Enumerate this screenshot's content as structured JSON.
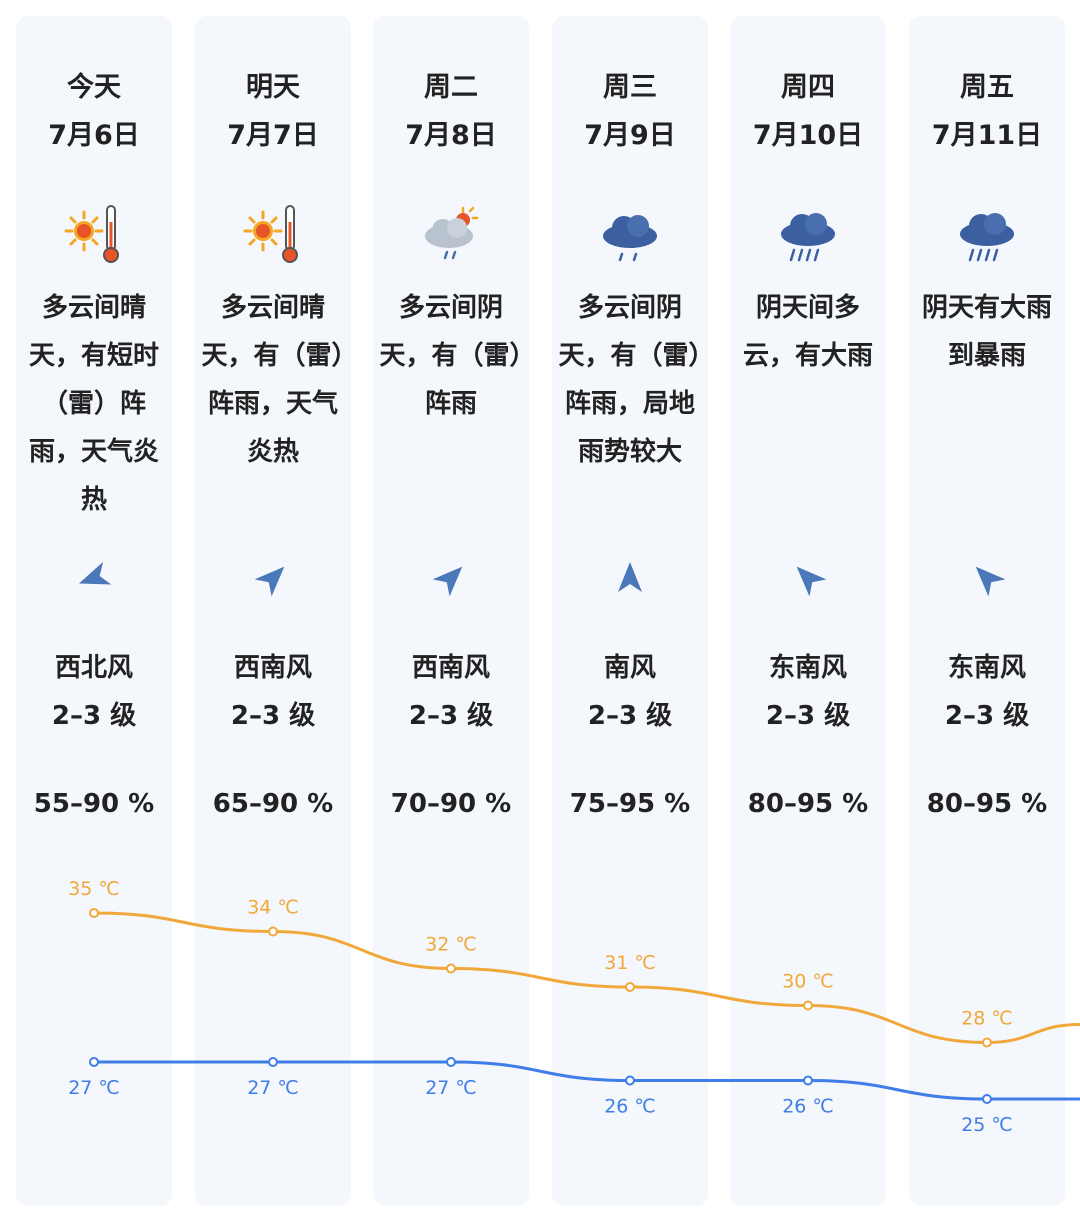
{
  "days": [
    {
      "day": "今天",
      "date": "7月6日",
      "icon": "sunny-hot-icon",
      "desc": "多云间晴天，有短时（雷）阵雨，天气炎热",
      "wind_dir": "西北风",
      "wind_level": "2–3 级",
      "humidity": "55–90 %",
      "high": "35 ℃",
      "low": "27 ℃"
    },
    {
      "day": "明天",
      "date": "7月7日",
      "icon": "sunny-hot-icon",
      "desc": "多云间晴天，有（雷）阵雨，天气炎热",
      "wind_dir": "西南风",
      "wind_level": "2–3 级",
      "humidity": "65–90 %",
      "high": "34 ℃",
      "low": "27 ℃"
    },
    {
      "day": "周二",
      "date": "7月8日",
      "icon": "partly-cloudy-rain-icon",
      "desc": "多云间阴天，有（雷）阵雨",
      "wind_dir": "西南风",
      "wind_level": "2–3 级",
      "humidity": "70–90 %",
      "high": "32 ℃",
      "low": "27 ℃"
    },
    {
      "day": "周三",
      "date": "7月9日",
      "icon": "cloud-rain-icon",
      "desc": "多云间阴天，有（雷）阵雨，局地雨势较大",
      "wind_dir": "南风",
      "wind_level": "2–3 级",
      "humidity": "75–95 %",
      "high": "31 ℃",
      "low": "26 ℃"
    },
    {
      "day": "周四",
      "date": "7月10日",
      "icon": "cloud-heavy-rain-icon",
      "desc": "阴天间多云，有大雨",
      "wind_dir": "东南风",
      "wind_level": "2–3 级",
      "humidity": "80–95 %",
      "high": "30 ℃",
      "low": "26 ℃"
    },
    {
      "day": "周五",
      "date": "7月11日",
      "icon": "cloud-heavy-rain-icon",
      "desc": "阴天有大雨到暴雨",
      "wind_dir": "东南风",
      "wind_level": "2–3 级",
      "humidity": "80–95 %",
      "high": "28 ℃",
      "low": "25 ℃"
    }
  ],
  "chart_data": {
    "type": "line",
    "categories": [
      "7月6日",
      "7月7日",
      "7月8日",
      "7月9日",
      "7月10日",
      "7月11日"
    ],
    "series": [
      {
        "values": [
          35,
          34,
          32,
          31,
          30,
          28
        ],
        "color": "#f0a83a"
      },
      {
        "values": [
          27,
          27,
          27,
          26,
          26,
          25
        ],
        "color": "#3f7de8"
      }
    ]
  }
}
